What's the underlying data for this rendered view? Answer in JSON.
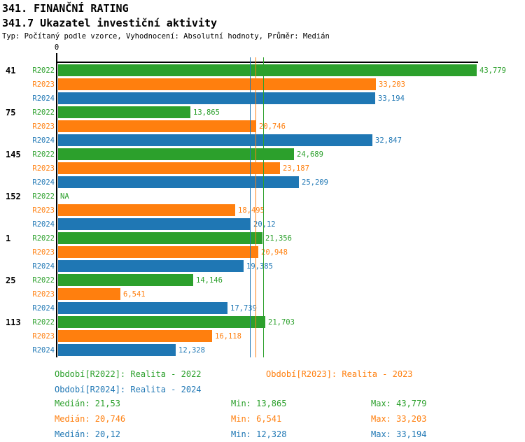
{
  "header": {
    "title": "341. FINANČNÍ RATING",
    "subtitle": "341.7 Ukazatel investiční aktivity",
    "meta": "Typ: Počítaný podle vzorce, Vyhodnocení: Absolutní hodnoty, Průměr: Medián"
  },
  "chart_data": {
    "type": "bar",
    "orientation": "horizontal",
    "title": "341.7 Ukazatel investiční aktivity",
    "x_axis": {
      "zero_label": "0",
      "min": 0,
      "max": 43.92,
      "position": "top",
      "grid": false
    },
    "categories": [
      "41",
      "75",
      "145",
      "152",
      "1",
      "25",
      "113"
    ],
    "series": [
      {
        "name": "R2022",
        "color": "#2ca02c",
        "values": [
          43.779,
          13.865,
          24.689,
          null,
          21.356,
          14.146,
          21.703
        ],
        "value_labels": [
          "43,779",
          "13,865",
          "24,689",
          "NA",
          "21,356",
          "14,146",
          "21,703"
        ]
      },
      {
        "name": "R2023",
        "color": "#ff7f0e",
        "values": [
          33.203,
          20.746,
          23.187,
          18.495,
          20.948,
          6.541,
          16.118
        ],
        "value_labels": [
          "33,203",
          "20,746",
          "23,187",
          "18,495",
          "20,948",
          "6,541",
          "16,118"
        ]
      },
      {
        "name": "R2024",
        "color": "#1f77b4",
        "values": [
          33.194,
          32.847,
          25.209,
          20.12,
          19.385,
          17.739,
          12.328
        ],
        "value_labels": [
          "33,194",
          "32,847",
          "25,209",
          "20,12",
          "19,385",
          "17,739",
          "12,328"
        ]
      }
    ],
    "median_lines": [
      {
        "series": "R2022",
        "value": 21.53,
        "color": "#2ca02c"
      },
      {
        "series": "R2023",
        "value": 20.746,
        "color": "#ff7f0e"
      },
      {
        "series": "R2024",
        "value": 20.12,
        "color": "#1f77b4"
      }
    ],
    "legend_position": "bottom"
  },
  "legend": {
    "r2022": {
      "label": "Období[R2022]: Realita - 2022",
      "color": "#2ca02c"
    },
    "r2023": {
      "label": "Období[R2023]: Realita - 2023",
      "color": "#ff7f0e"
    },
    "r2024": {
      "label": "Období[R2024]: Realita - 2024",
      "color": "#1f77b4"
    }
  },
  "stats": {
    "rows": [
      {
        "series": "R2022",
        "color": "#2ca02c",
        "median": "Medián: 21,53",
        "min": "Min: 13,865",
        "max": "Max: 43,779"
      },
      {
        "series": "R2023",
        "color": "#ff7f0e",
        "median": "Medián: 20,746",
        "min": "Min: 6,541",
        "max": "Max: 33,203"
      },
      {
        "series": "R2024",
        "color": "#1f77b4",
        "median": "Medián: 20,12",
        "min": "Min: 12,328",
        "max": "Max: 33,194"
      }
    ]
  }
}
